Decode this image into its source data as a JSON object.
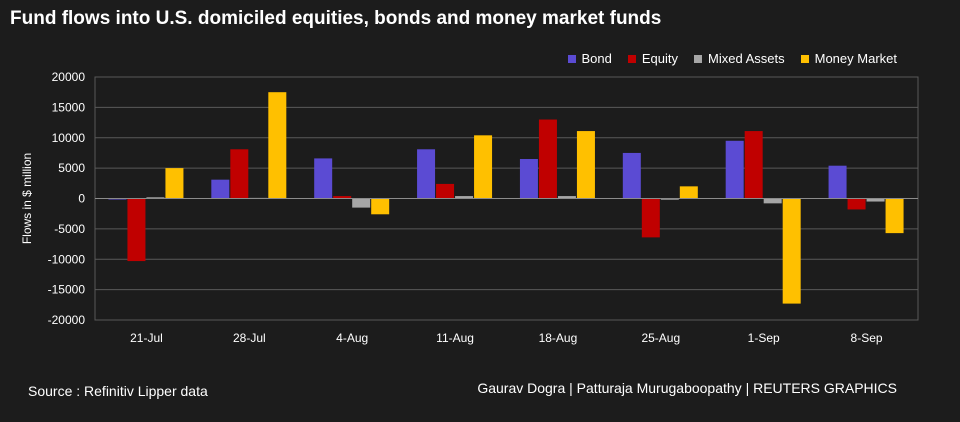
{
  "chart_data": {
    "type": "bar",
    "title": "Fund flows into U.S. domiciled equities, bonds and money market funds",
    "xlabel": "",
    "ylabel": "Flows in $ million",
    "ylim": [
      -20000,
      20000
    ],
    "yticks": [
      20000,
      15000,
      10000,
      5000,
      0,
      -5000,
      -10000,
      -15000,
      -20000
    ],
    "grid": true,
    "legend_position": "top-right",
    "categories": [
      "21-Jul",
      "28-Jul",
      "4-Aug",
      "11-Aug",
      "18-Aug",
      "25-Aug",
      "1-Sep",
      "8-Sep"
    ],
    "series": [
      {
        "name": "Bond",
        "color": "#5b4bd3",
        "values": [
          -100,
          3100,
          6600,
          8100,
          6500,
          7500,
          9500,
          5400
        ]
      },
      {
        "name": "Equity",
        "color": "#c00000",
        "values": [
          -10300,
          8100,
          400,
          2400,
          13000,
          -6400,
          11100,
          -1800
        ]
      },
      {
        "name": "Mixed Assets",
        "color": "#a6a6a6",
        "values": [
          200,
          100,
          -1500,
          400,
          400,
          -200,
          -800,
          -500
        ]
      },
      {
        "name": "Money Market",
        "color": "#ffc000",
        "values": [
          5000,
          17500,
          -2600,
          10400,
          11100,
          2000,
          -17300,
          -5700
        ]
      }
    ]
  },
  "footer": {
    "source": "Source : Refinitiv Lipper data",
    "credit": "Gaurav Dogra | Patturaja Murugaboopathy | REUTERS GRAPHICS"
  }
}
